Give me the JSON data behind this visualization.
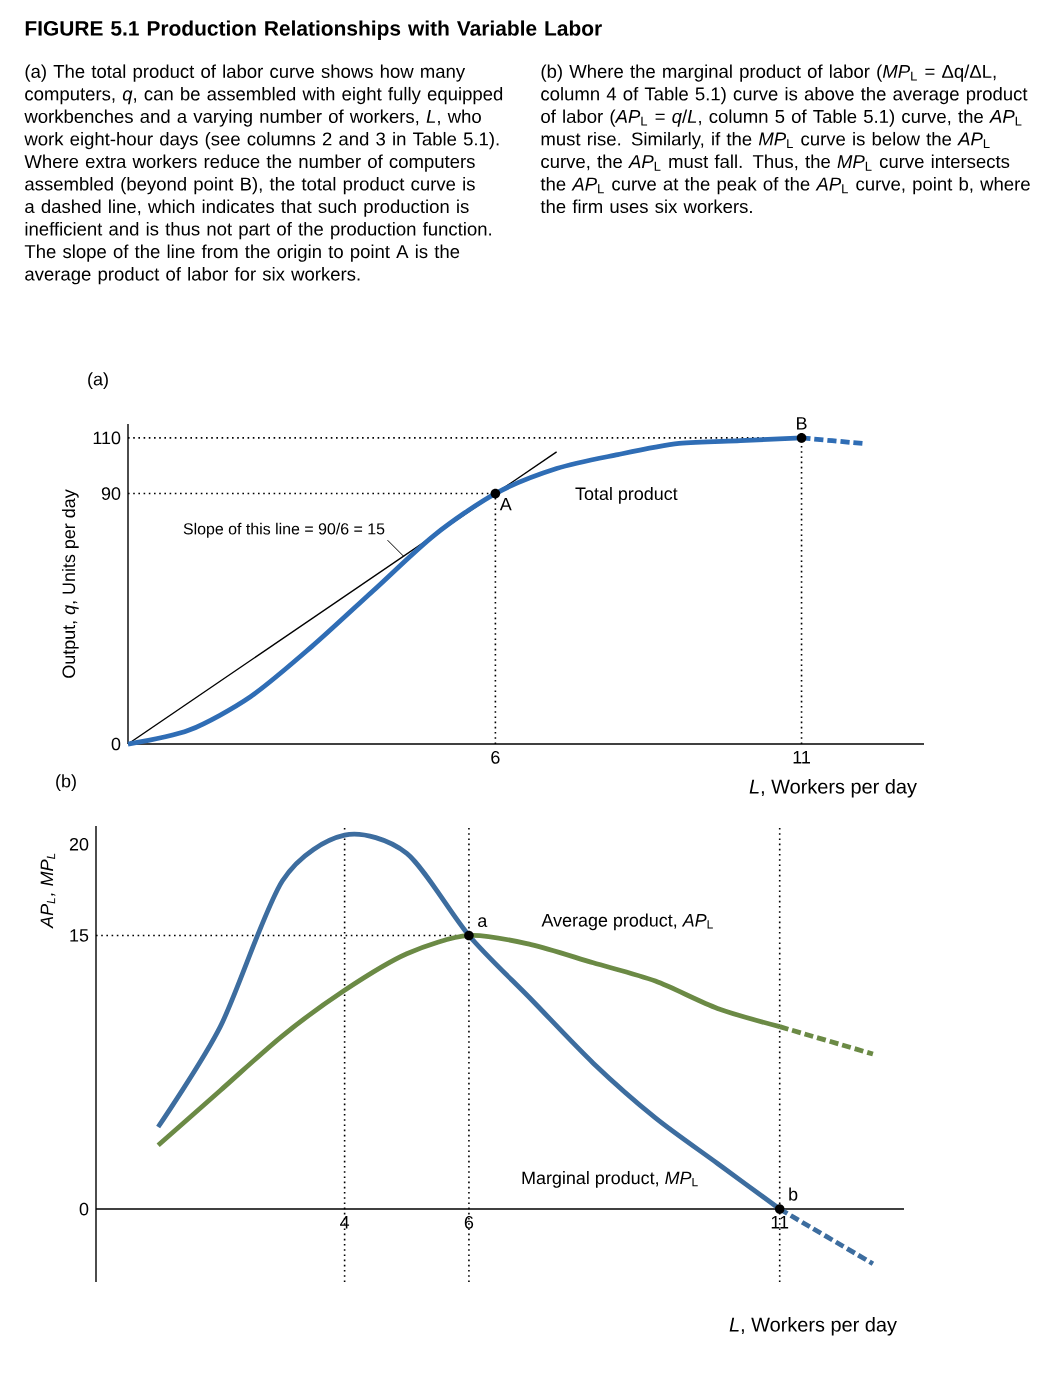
{
  "chart_data": [
    {
      "type": "line",
      "title": "(a)",
      "xlabel": "*L*, Workers per day",
      "ylabel": "Output, *q*, Units per day",
      "xlim": [
        0,
        13
      ],
      "ylim": [
        0,
        115
      ],
      "xticks": [
        6,
        11
      ],
      "yticks": [
        0,
        90,
        110
      ],
      "series": [
        {
          "x": [
            0,
            7
          ],
          "values": [
            0,
            105
          ],
          "color": "#000000"
        },
        {
          "name": "Total product",
          "x": [
            0,
            1,
            2,
            3,
            4,
            5,
            6,
            7,
            8,
            9,
            10,
            11
          ],
          "values": [
            0,
            5,
            17,
            35,
            55,
            75,
            90,
            99,
            104,
            108,
            109,
            110
          ],
          "color": "#2f6db5"
        },
        {
          "x": [
            11,
            12
          ],
          "values": [
            110,
            108
          ],
          "color": "#2f6db5",
          "line_style": "dashed"
        }
      ],
      "ref_lines": [
        {
          "axis": "y",
          "value": 90,
          "line_style": "dotted"
        },
        {
          "axis": "y",
          "value": 110,
          "line_style": "dotted"
        },
        {
          "axis": "x",
          "value": 6,
          "line_style": "dotted"
        },
        {
          "axis": "x",
          "value": 11,
          "line_style": "dotted"
        }
      ],
      "annotations": [
        "FIGURE 5.1 Production Relationships with Variable Labor",
        "(a) The total product of labor curve shows how many computers, *q*, can be assembled with eight fully equipped workbenches and a varying number of workers, *L*, who work eight-hour days (see columns 2 and 3 in Table 5.1). Where extra workers reduce the number of computers assembled (beyond point B), the total product curve is a dashed line, which indicates that such production is inefficient and is thus not part of the production function. The slope of the line from the origin to point A is the average product of labor for six workers.",
        "(b) Where the marginal product of labor (*MP*$_{L}$ = Δq/ΔL, column 4 of Table 5.1) curve is above the average product of labor (*AP*$_{L}$ = *q*/*L*, column 5 of Table 5.1) curve, the *AP*$_{L}$ must rise. Similarly, if the *MP*$_{L}$ curve is below the *AP*$_{L}$ curve, the *AP*$_{L}$ must fall. Thus, the *MP*$_{L}$ curve intersects the *AP*$_{L}$ curve at the peak of the *AP*$_{L}$ curve, point b, where the firm uses six workers.",
        {
          "text": "Slope of this line = 90/6 = 15",
          "x": 4.5,
          "y": 67.5
        },
        {
          "text": "A",
          "x": 6,
          "y": 90
        },
        {
          "text": "B",
          "x": 11,
          "y": 110
        }
      ]
    },
    {
      "type": "line",
      "title": "(b)",
      "xlabel": "*L*, Workers per day",
      "ylabel": "AP$_{L}$, MP$_{L}$",
      "xlim": [
        0,
        13
      ],
      "ylim": [
        -4,
        21
      ],
      "xticks": [
        4,
        6,
        11
      ],
      "yticks": [
        0,
        15,
        20
      ],
      "series": [
        {
          "name": "Marginal product, *MP*$_{L}$",
          "x": [
            1,
            2,
            3,
            4,
            5,
            6,
            7,
            8,
            9,
            10,
            11
          ],
          "values": [
            4.5,
            10,
            18,
            20.5,
            19.5,
            15,
            11.5,
            8,
            5,
            2.5,
            0
          ],
          "color": "#3d6d9f"
        },
        {
          "x": [
            11,
            12.5
          ],
          "values": [
            0,
            -3
          ],
          "color": "#3d6d9f",
          "line_style": "dashed"
        },
        {
          "name": "Average product, *AP*$_{L}$",
          "x": [
            1,
            2,
            3,
            4,
            5,
            6,
            7,
            8,
            9,
            10,
            11
          ],
          "values": [
            3.5,
            6.5,
            9.5,
            12,
            14,
            15,
            14.5,
            13.5,
            12.5,
            11,
            10
          ],
          "color": "#6b8a45"
        },
        {
          "x": [
            11,
            12.5
          ],
          "values": [
            10,
            8.5
          ],
          "color": "#6b8a45",
          "line_style": "dashed"
        }
      ],
      "ref_lines": [
        {
          "axis": "y",
          "value": 15,
          "line_style": "dotted"
        },
        {
          "axis": "x",
          "value": 4,
          "line_style": "dotted"
        },
        {
          "axis": "x",
          "value": 6,
          "line_style": "dotted"
        },
        {
          "axis": "x",
          "value": 11,
          "line_style": "dotted"
        }
      ],
      "annotations": [
        {
          "text": "a",
          "x": 6,
          "y": 15
        },
        {
          "text": "b",
          "x": 11,
          "y": 0
        }
      ]
    }
  ]
}
